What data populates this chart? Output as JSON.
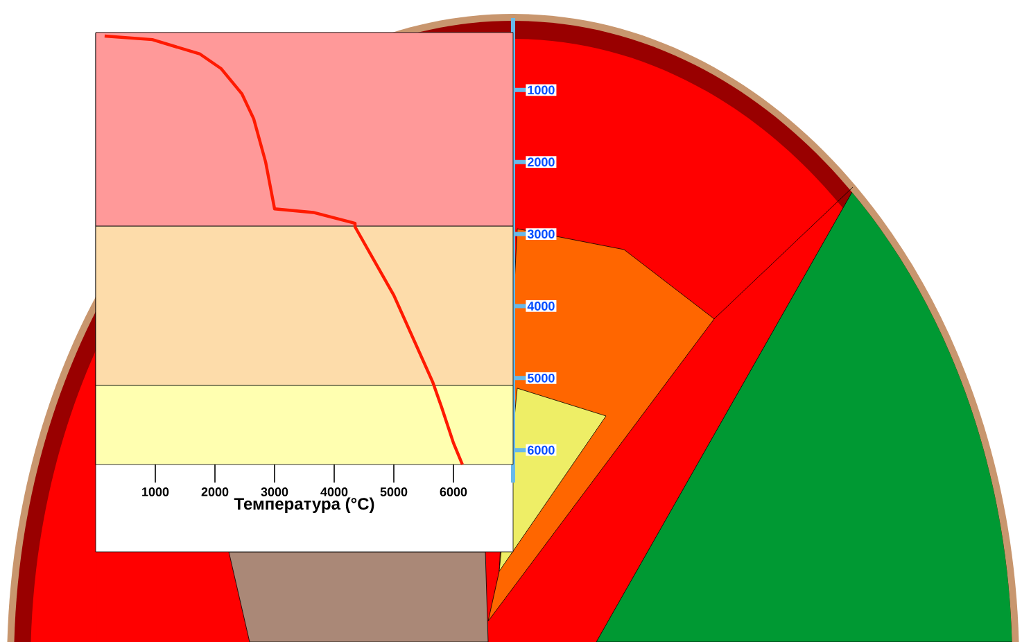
{
  "chart_data": {
    "type": "line",
    "xlabel": "Температура (°C)",
    "xlim": [
      0,
      7000
    ],
    "xticks": [
      1000,
      2000,
      3000,
      4000,
      5000,
      6000
    ],
    "ylim": [
      6450,
      0
    ],
    "yticks": [
      1000,
      2000,
      3000,
      4000,
      5000,
      6000
    ],
    "series": [
      {
        "color": "#ff1a00",
        "x": [
          150,
          950,
          1750,
          2100,
          2450,
          2650,
          2850,
          3000,
          3650,
          4350,
          4350,
          5000,
          5650,
          5800,
          6000,
          6150
        ],
        "values": [
          250,
          300,
          500,
          700,
          1050,
          1400,
          2000,
          2650,
          2700,
          2850,
          2900,
          3850,
          5050,
          5400,
          5900,
          6200
        ]
      }
    ],
    "bands": [
      {
        "axis": "y",
        "from": 200,
        "to": 2890,
        "color": "#ff9999"
      },
      {
        "axis": "y",
        "from": 2890,
        "to": 5100,
        "color": "#fddcaa"
      },
      {
        "axis": "y",
        "from": 5100,
        "to": 6200,
        "color": "#ffffb0"
      }
    ],
    "marker": "none",
    "line_style": "solid"
  }
}
